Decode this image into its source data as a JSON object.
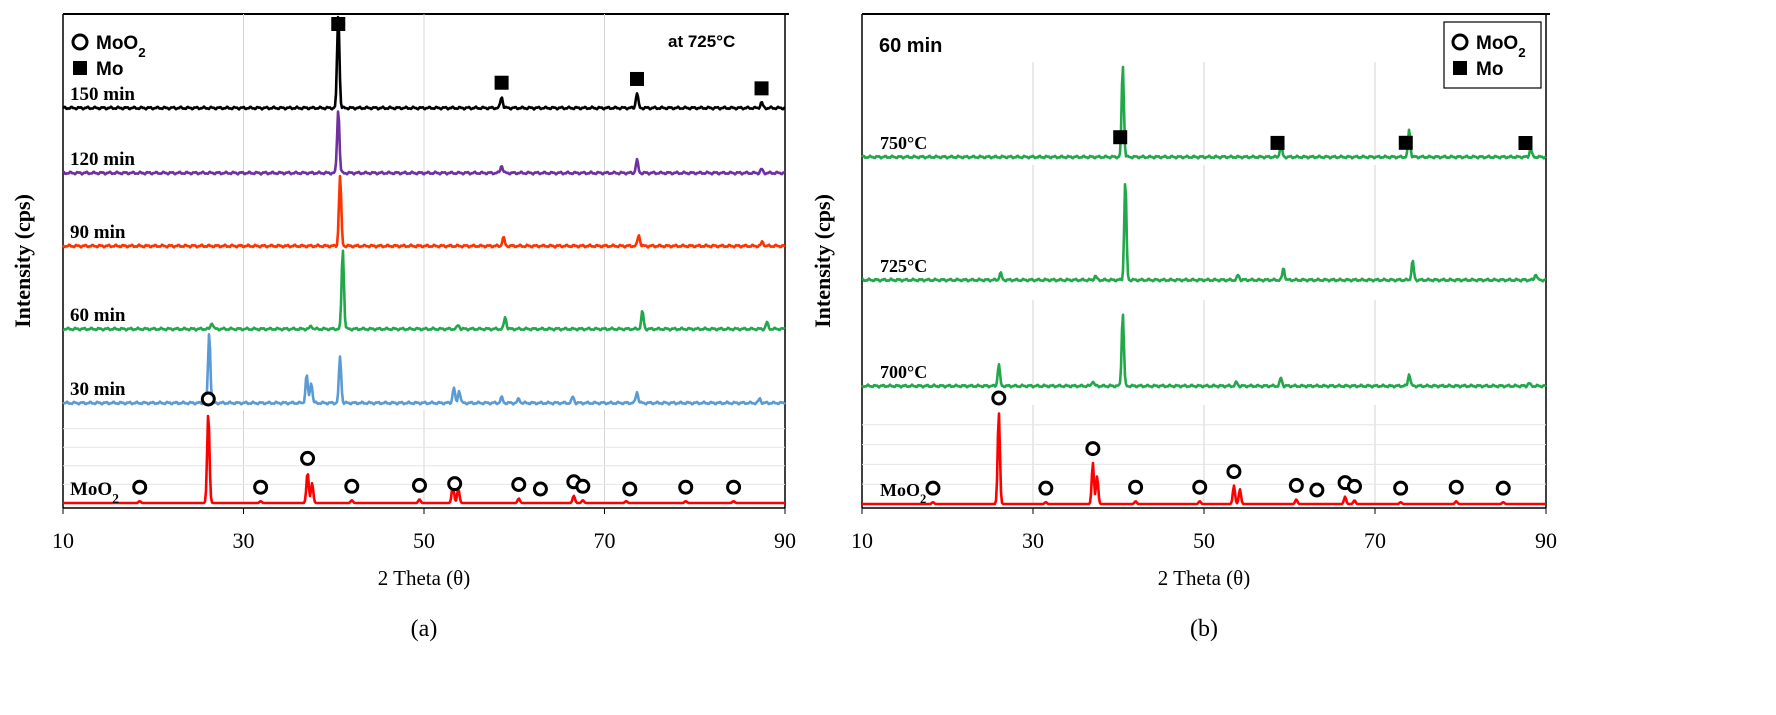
{
  "chart_data": [
    {
      "panel_label": "(a)",
      "type": "line",
      "xlabel": "2 Theta (θ)",
      "ylabel": "Intensity (cps)",
      "xlim": [
        10,
        90
      ],
      "xticks": [
        10,
        30,
        50,
        70,
        90
      ],
      "annotation": "at 725°C",
      "legend": {
        "placement": "top-left",
        "entries": [
          {
            "symbol": "circle",
            "label": "MoO2"
          },
          {
            "symbol": "square",
            "label": "Mo"
          }
        ]
      },
      "series": [
        {
          "name": "150 min",
          "color": "#000000",
          "peaks": [
            {
              "x": 40.5,
              "h": 1.0
            },
            {
              "x": 58.6,
              "h": 0.12
            },
            {
              "x": 73.6,
              "h": 0.16
            },
            {
              "x": 87.4,
              "h": 0.06
            }
          ]
        },
        {
          "name": "120 min",
          "color": "#7030a0",
          "peaks": [
            {
              "x": 40.5,
              "h": 1.0
            },
            {
              "x": 58.6,
              "h": 0.12
            },
            {
              "x": 73.6,
              "h": 0.2
            },
            {
              "x": 87.4,
              "h": 0.06
            }
          ]
        },
        {
          "name": "90 min",
          "color": "#ff3300",
          "peaks": [
            {
              "x": 40.7,
              "h": 1.0
            },
            {
              "x": 58.8,
              "h": 0.12
            },
            {
              "x": 73.8,
              "h": 0.16
            },
            {
              "x": 87.5,
              "h": 0.06
            }
          ]
        },
        {
          "name": "60 min",
          "color": "#22a84b",
          "peaks": [
            {
              "x": 26.5,
              "h": 0.08
            },
            {
              "x": 37.5,
              "h": 0.04
            },
            {
              "x": 41.0,
              "h": 1.0
            },
            {
              "x": 53.8,
              "h": 0.05
            },
            {
              "x": 59.0,
              "h": 0.15
            },
            {
              "x": 74.2,
              "h": 0.22
            },
            {
              "x": 88.0,
              "h": 0.08
            }
          ]
        },
        {
          "name": "30 min",
          "color": "#5b9bd5",
          "peaks": [
            {
              "x": 26.2,
              "h": 1.0
            },
            {
              "x": 37.0,
              "h": 0.4
            },
            {
              "x": 37.5,
              "h": 0.3
            },
            {
              "x": 40.7,
              "h": 0.66
            },
            {
              "x": 53.3,
              "h": 0.22
            },
            {
              "x": 53.9,
              "h": 0.18
            },
            {
              "x": 58.6,
              "h": 0.08
            },
            {
              "x": 60.5,
              "h": 0.06
            },
            {
              "x": 66.5,
              "h": 0.09
            },
            {
              "x": 73.6,
              "h": 0.16
            },
            {
              "x": 87.2,
              "h": 0.06
            }
          ]
        },
        {
          "name": "MoO2",
          "color": "#ff0000",
          "peaks": [
            {
              "x": 18.5,
              "h": 0.02
            },
            {
              "x": 26.1,
              "h": 1.0
            },
            {
              "x": 31.9,
              "h": 0.02
            },
            {
              "x": 37.1,
              "h": 0.34
            },
            {
              "x": 37.6,
              "h": 0.22
            },
            {
              "x": 42.0,
              "h": 0.03
            },
            {
              "x": 49.5,
              "h": 0.04
            },
            {
              "x": 53.2,
              "h": 0.2
            },
            {
              "x": 53.8,
              "h": 0.16
            },
            {
              "x": 60.5,
              "h": 0.05
            },
            {
              "x": 66.6,
              "h": 0.08
            },
            {
              "x": 67.6,
              "h": 0.03
            },
            {
              "x": 72.4,
              "h": 0.02
            },
            {
              "x": 79.0,
              "h": 0.02
            },
            {
              "x": 84.3,
              "h": 0.02
            }
          ]
        }
      ],
      "markers": [
        {
          "series": "150 min",
          "x": 40.5,
          "symbol": "square"
        },
        {
          "series": "150 min",
          "x": 58.6,
          "symbol": "square"
        },
        {
          "series": "150 min",
          "x": 73.6,
          "symbol": "square"
        },
        {
          "series": "150 min",
          "x": 87.4,
          "symbol": "square"
        },
        {
          "series": "MoO2",
          "x": 26.1,
          "symbol": "circle"
        },
        {
          "series": "MoO2",
          "x": 37.1,
          "symbol": "circle"
        },
        {
          "series": "MoO2",
          "x": 53.4,
          "symbol": "circle"
        },
        {
          "series": "MoO2",
          "x": 18.5,
          "symbol": "circle"
        },
        {
          "series": "MoO2",
          "x": 31.9,
          "symbol": "circle"
        },
        {
          "series": "MoO2",
          "x": 42.0,
          "symbol": "circle"
        },
        {
          "series": "MoO2",
          "x": 49.5,
          "symbol": "circle"
        },
        {
          "series": "MoO2",
          "x": 60.5,
          "symbol": "circle"
        },
        {
          "series": "MoO2",
          "x": 62.9,
          "symbol": "circle"
        },
        {
          "series": "MoO2",
          "x": 66.6,
          "symbol": "circle"
        },
        {
          "series": "MoO2",
          "x": 67.6,
          "symbol": "circle"
        },
        {
          "series": "MoO2",
          "x": 72.8,
          "symbol": "circle"
        },
        {
          "series": "MoO2",
          "x": 79.0,
          "symbol": "circle"
        },
        {
          "series": "MoO2",
          "x": 84.3,
          "symbol": "circle"
        }
      ]
    },
    {
      "panel_label": "(b)",
      "type": "line",
      "xlabel": "2 Theta (θ)",
      "ylabel": "Intensity (cps)",
      "xlim": [
        10,
        90
      ],
      "xticks": [
        10,
        30,
        50,
        70,
        90
      ],
      "annotation": "60 min",
      "legend": {
        "placement": "top-right",
        "entries": [
          {
            "symbol": "circle",
            "label": "MoO2"
          },
          {
            "symbol": "square",
            "label": "Mo"
          }
        ]
      },
      "series": [
        {
          "name": "750°C",
          "color": "#22a84b",
          "peaks": [
            {
              "x": 40.5,
              "h": 1.0
            },
            {
              "x": 59.0,
              "h": 0.14
            },
            {
              "x": 74.0,
              "h": 0.3
            },
            {
              "x": 88.2,
              "h": 0.09
            }
          ]
        },
        {
          "name": "725°C",
          "color": "#22a84b",
          "peaks": [
            {
              "x": 26.2,
              "h": 0.07
            },
            {
              "x": 37.3,
              "h": 0.04
            },
            {
              "x": 40.8,
              "h": 1.0
            },
            {
              "x": 54.0,
              "h": 0.05
            },
            {
              "x": 59.3,
              "h": 0.12
            },
            {
              "x": 74.4,
              "h": 0.19
            },
            {
              "x": 88.8,
              "h": 0.06
            }
          ]
        },
        {
          "name": "700°C",
          "color": "#22a84b",
          "peaks": [
            {
              "x": 26.0,
              "h": 0.3
            },
            {
              "x": 37.0,
              "h": 0.07
            },
            {
              "x": 40.5,
              "h": 1.0
            },
            {
              "x": 53.8,
              "h": 0.05
            },
            {
              "x": 59.0,
              "h": 0.11
            },
            {
              "x": 74.0,
              "h": 0.17
            },
            {
              "x": 88.0,
              "h": 0.04
            }
          ]
        },
        {
          "name": "MoO2",
          "color": "#ff0000",
          "peaks": [
            {
              "x": 18.3,
              "h": 0.02
            },
            {
              "x": 26.0,
              "h": 1.0
            },
            {
              "x": 31.5,
              "h": 0.02
            },
            {
              "x": 37.0,
              "h": 0.45
            },
            {
              "x": 37.5,
              "h": 0.3
            },
            {
              "x": 42.0,
              "h": 0.03
            },
            {
              "x": 49.5,
              "h": 0.03
            },
            {
              "x": 53.5,
              "h": 0.2
            },
            {
              "x": 54.2,
              "h": 0.16
            },
            {
              "x": 60.8,
              "h": 0.05
            },
            {
              "x": 66.5,
              "h": 0.08
            },
            {
              "x": 67.6,
              "h": 0.04
            },
            {
              "x": 73.0,
              "h": 0.02
            },
            {
              "x": 79.5,
              "h": 0.03
            },
            {
              "x": 85.0,
              "h": 0.02
            }
          ]
        }
      ],
      "markers": [
        {
          "series": "750°C",
          "x": 40.2,
          "symbol": "square"
        },
        {
          "series": "750°C",
          "x": 58.6,
          "symbol": "square"
        },
        {
          "series": "750°C",
          "x": 73.6,
          "symbol": "square"
        },
        {
          "series": "750°C",
          "x": 87.6,
          "symbol": "square"
        },
        {
          "series": "MoO2",
          "x": 26.0,
          "symbol": "circle"
        },
        {
          "series": "MoO2",
          "x": 37.0,
          "symbol": "circle"
        },
        {
          "series": "MoO2",
          "x": 53.5,
          "symbol": "circle"
        },
        {
          "series": "MoO2",
          "x": 18.3,
          "symbol": "circle"
        },
        {
          "series": "MoO2",
          "x": 31.5,
          "symbol": "circle"
        },
        {
          "series": "MoO2",
          "x": 42.0,
          "symbol": "circle"
        },
        {
          "series": "MoO2",
          "x": 49.5,
          "symbol": "circle"
        },
        {
          "series": "MoO2",
          "x": 60.8,
          "symbol": "circle"
        },
        {
          "series": "MoO2",
          "x": 63.2,
          "symbol": "circle"
        },
        {
          "series": "MoO2",
          "x": 66.5,
          "symbol": "circle"
        },
        {
          "series": "MoO2",
          "x": 67.6,
          "symbol": "circle"
        },
        {
          "series": "MoO2",
          "x": 73.0,
          "symbol": "circle"
        },
        {
          "series": "MoO2",
          "x": 79.5,
          "symbol": "circle"
        },
        {
          "series": "MoO2",
          "x": 85.0,
          "symbol": "circle"
        }
      ]
    }
  ]
}
